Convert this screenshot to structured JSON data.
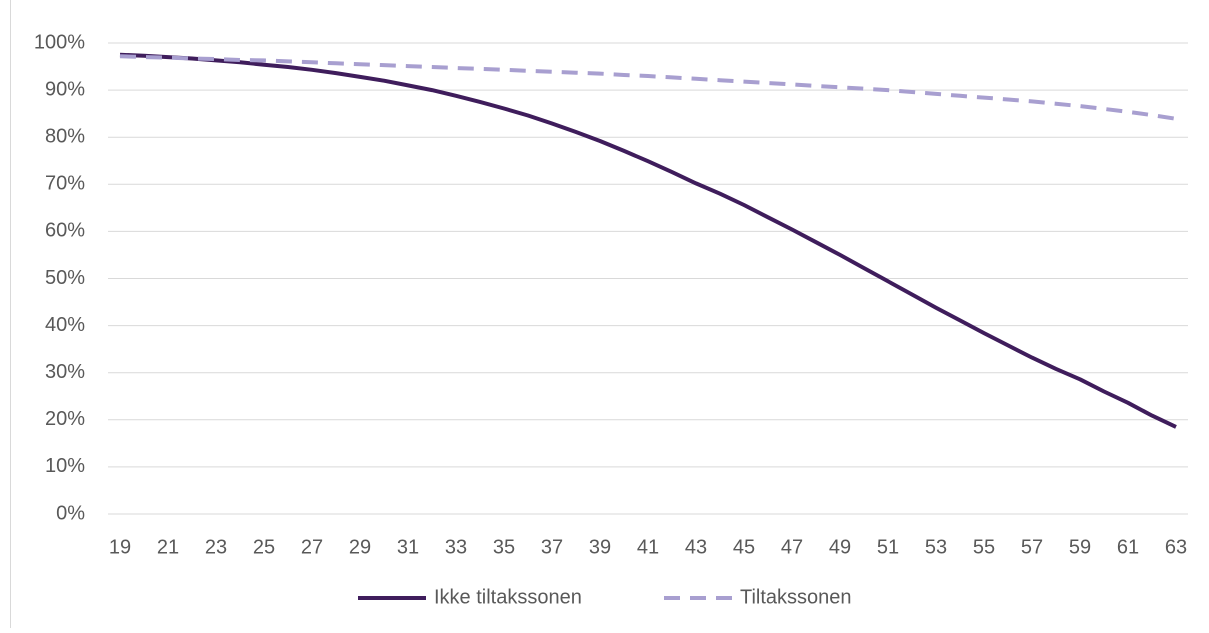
{
  "chart_data": {
    "type": "line",
    "categories": [
      "19",
      null,
      "21",
      null,
      "23",
      null,
      "25",
      null,
      "27",
      null,
      "29",
      null,
      "31",
      null,
      "33",
      null,
      "35",
      null,
      "37",
      null,
      "39",
      null,
      "41",
      null,
      "43",
      null,
      "45",
      null,
      "47",
      null,
      "49",
      null,
      "51",
      null,
      "53",
      null,
      "55",
      null,
      "57",
      null,
      "59",
      null,
      "61",
      null,
      "63"
    ],
    "series": [
      {
        "name": "Ikke tiltakssonen",
        "color": "#3f1d5c",
        "dash": false,
        "values": [
          97.5,
          97.3,
          97.0,
          96.7,
          96.3,
          95.9,
          95.4,
          94.9,
          94.3,
          93.6,
          92.8,
          92.0,
          91.0,
          90.0,
          88.8,
          87.5,
          86.1,
          84.6,
          82.9,
          81.1,
          79.2,
          77.1,
          74.9,
          72.6,
          70.2,
          68.0,
          65.6,
          63.0,
          60.4,
          57.7,
          55.0,
          52.2,
          49.4,
          46.6,
          43.8,
          41.1,
          38.4,
          35.8,
          33.2,
          30.8,
          28.6,
          26.0,
          23.6,
          20.9,
          18.5
        ]
      },
      {
        "name": "Tiltakssonen",
        "color": "#a89fd0",
        "dash": true,
        "values": [
          97.2,
          97.0,
          96.9,
          96.7,
          96.6,
          96.4,
          96.3,
          96.1,
          95.9,
          95.7,
          95.5,
          95.3,
          95.1,
          94.9,
          94.7,
          94.5,
          94.3,
          94.1,
          93.9,
          93.7,
          93.5,
          93.2,
          93.0,
          92.7,
          92.4,
          92.1,
          91.8,
          91.5,
          91.2,
          90.9,
          90.6,
          90.3,
          90.0,
          89.6,
          89.2,
          88.8,
          88.4,
          88.0,
          87.6,
          87.1,
          86.6,
          86.0,
          85.4,
          84.7,
          83.9
        ]
      }
    ],
    "ylim": [
      0,
      100
    ],
    "yticks": [
      {
        "value": 0,
        "label": "0%"
      },
      {
        "value": 10,
        "label": "10%"
      },
      {
        "value": 20,
        "label": "20%"
      },
      {
        "value": 30,
        "label": "30%"
      },
      {
        "value": 40,
        "label": "40%"
      },
      {
        "value": 50,
        "label": "50%"
      },
      {
        "value": 60,
        "label": "60%"
      },
      {
        "value": 70,
        "label": "70%"
      },
      {
        "value": 80,
        "label": "80%"
      },
      {
        "value": 90,
        "label": "90%"
      },
      {
        "value": 100,
        "label": "100%"
      }
    ],
    "grid": true,
    "legend": "bottom"
  }
}
